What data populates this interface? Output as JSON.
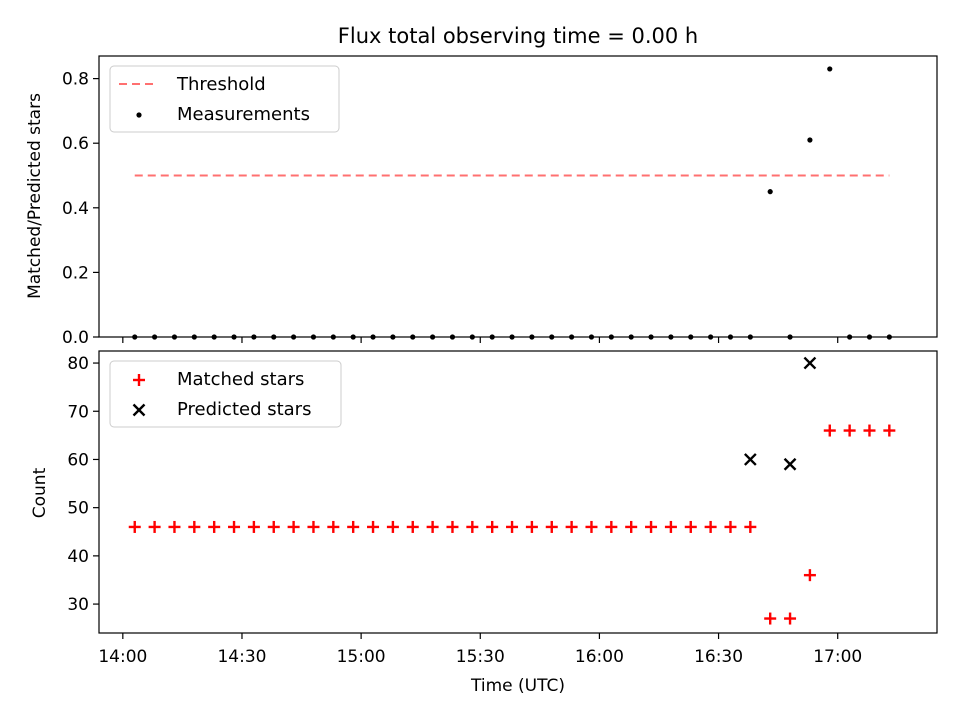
{
  "chart_data": [
    {
      "type": "scatter",
      "title": "Flux total observing time = 0.00 h",
      "xlabel": "",
      "ylabel": "Matched/Predicted stars",
      "ylim": [
        0,
        0.87
      ],
      "yticks": [
        "0.0",
        "0.2",
        "0.4",
        "0.6",
        "0.8"
      ],
      "ytick_values": [
        0,
        0.2,
        0.4,
        0.6,
        0.8
      ],
      "xlim_minutes": [
        -6,
        205
      ],
      "legend_position": "top-left",
      "threshold": {
        "label": "Threshold",
        "value": 0.5,
        "x_start": 3,
        "x_end": 193,
        "color": "#ff7070"
      },
      "series": [
        {
          "name": "Measurements",
          "marker": "dot",
          "color": "#000000",
          "x_minutes": [
            3,
            8,
            13,
            18,
            23,
            28,
            33,
            38,
            43,
            48,
            53,
            58,
            63,
            68,
            73,
            78,
            83,
            88,
            93,
            98,
            103,
            108,
            113,
            118,
            123,
            128,
            133,
            138,
            143,
            148,
            153,
            158,
            163,
            168,
            173,
            178,
            183,
            188,
            193
          ],
          "values": [
            0,
            0,
            0,
            0,
            0,
            0,
            0,
            0,
            0,
            0,
            0,
            0,
            0,
            0,
            0,
            0,
            0,
            0,
            0,
            0,
            0,
            0,
            0,
            0,
            0,
            0,
            0,
            0,
            0,
            0,
            0,
            0,
            0.45,
            0,
            0.61,
            0.83,
            0,
            0,
            0
          ]
        }
      ]
    },
    {
      "type": "scatter",
      "title": "",
      "xlabel": "Time (UTC)",
      "ylabel": "Count",
      "ylim": [
        24,
        82.5
      ],
      "yticks": [
        "30",
        "40",
        "50",
        "60",
        "70",
        "80"
      ],
      "ytick_values": [
        30,
        40,
        50,
        60,
        70,
        80
      ],
      "xlim_minutes": [
        -6,
        205
      ],
      "xticks": [
        "14:00",
        "14:30",
        "15:00",
        "15:30",
        "16:00",
        "16:30",
        "17:00"
      ],
      "xtick_minutes": [
        0,
        30,
        60,
        90,
        120,
        150,
        180
      ],
      "legend_position": "top-left",
      "series": [
        {
          "name": "Matched stars",
          "marker": "plus",
          "color": "#ff0000",
          "x_minutes": [
            3,
            8,
            13,
            18,
            23,
            28,
            33,
            38,
            43,
            48,
            53,
            58,
            63,
            68,
            73,
            78,
            83,
            88,
            93,
            98,
            103,
            108,
            113,
            118,
            123,
            128,
            133,
            138,
            143,
            148,
            153,
            158,
            163,
            168,
            173,
            178,
            183,
            188,
            193
          ],
          "values": [
            46,
            46,
            46,
            46,
            46,
            46,
            46,
            46,
            46,
            46,
            46,
            46,
            46,
            46,
            46,
            46,
            46,
            46,
            46,
            46,
            46,
            46,
            46,
            46,
            46,
            46,
            46,
            46,
            46,
            46,
            46,
            46,
            27,
            27,
            36,
            66,
            66,
            66,
            66
          ]
        },
        {
          "name": "Predicted stars",
          "marker": "x",
          "color": "#000000",
          "x_minutes": [
            158,
            168,
            173
          ],
          "values": [
            60,
            59,
            80
          ]
        }
      ]
    }
  ]
}
